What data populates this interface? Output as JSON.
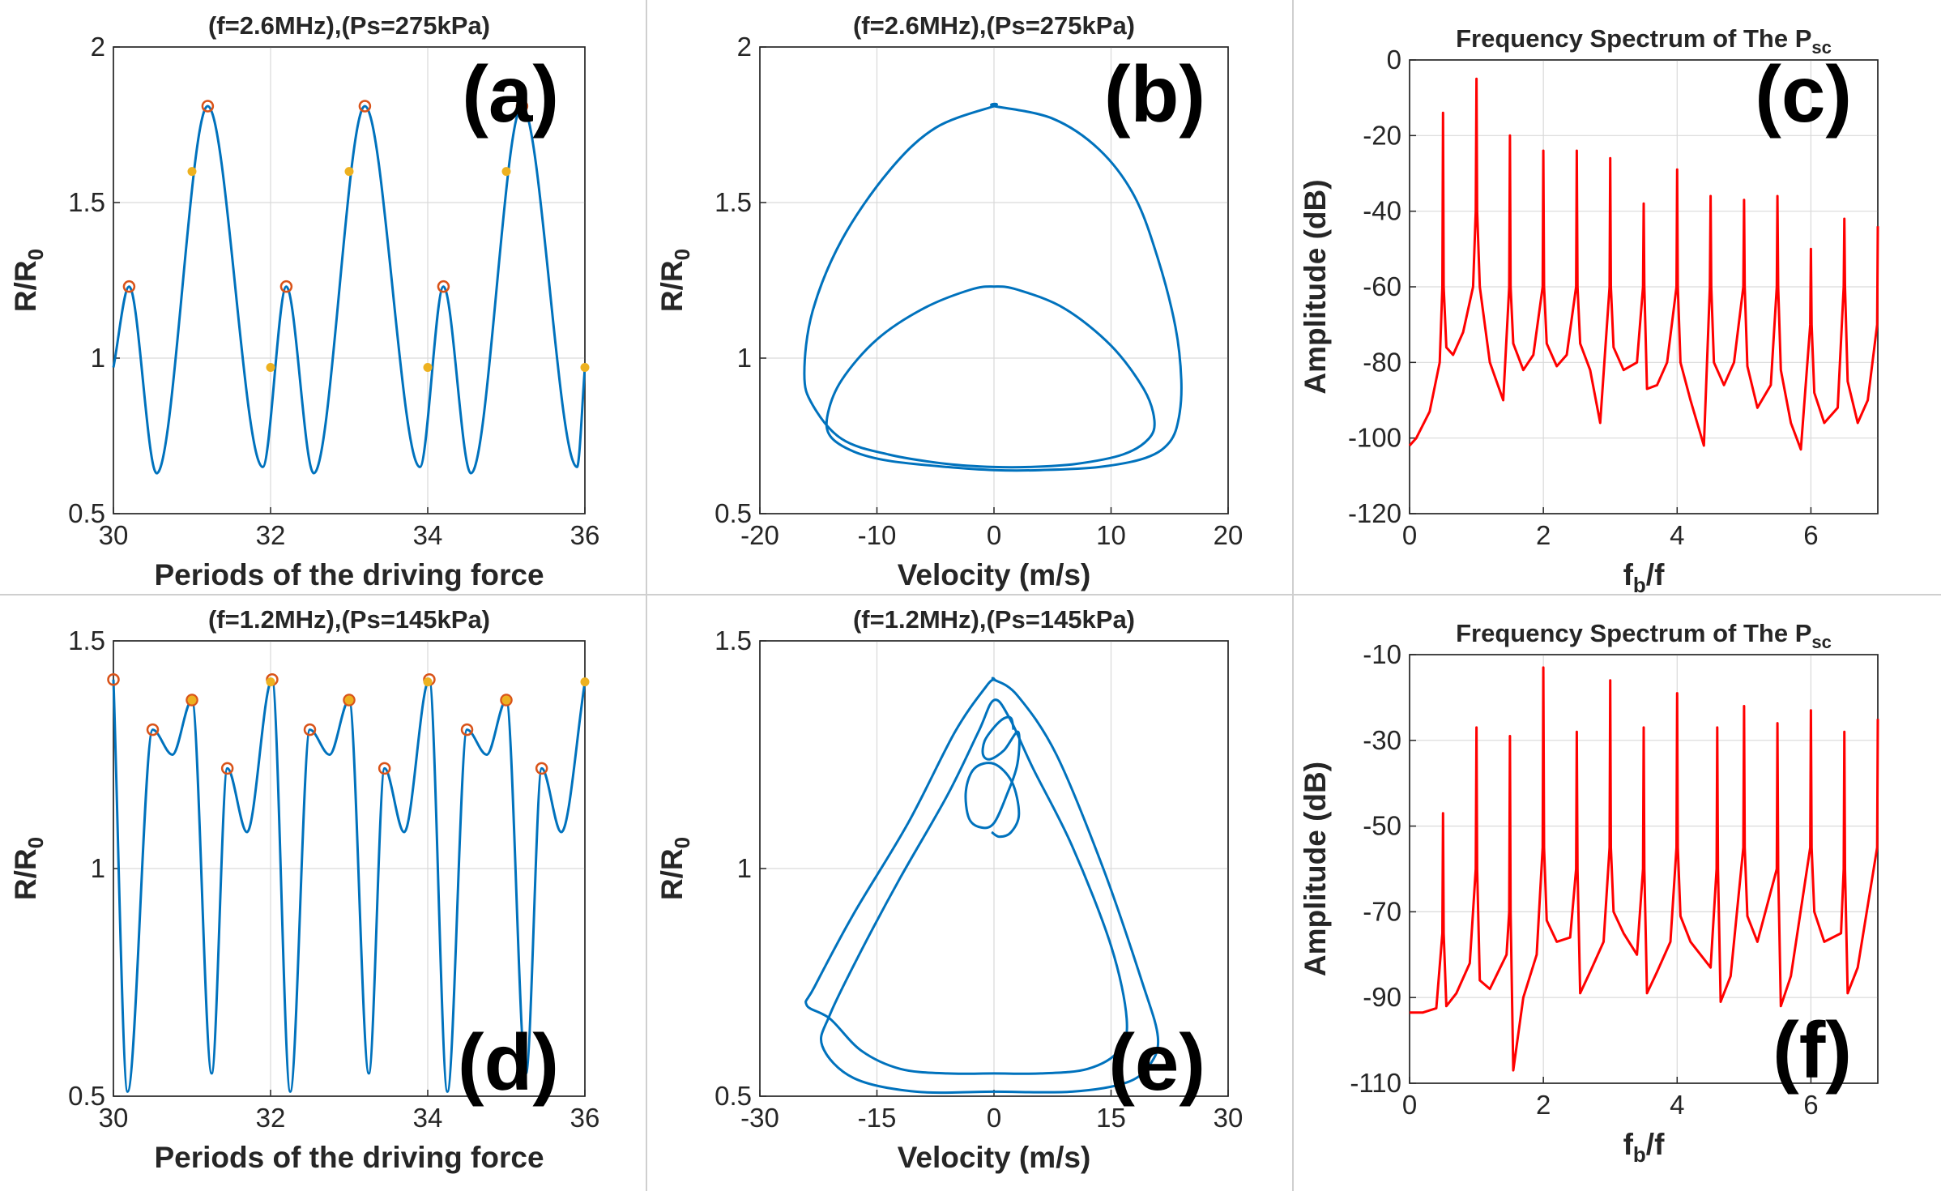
{
  "colors": {
    "blue": "#0072BD",
    "red": "#FF0000",
    "orange": "#EDB120",
    "marker_red": "#D95319",
    "axis": "#262626",
    "grid": "#d9d9d9"
  },
  "chart_data": [
    {
      "id": "a",
      "type": "line",
      "tag": "(a)",
      "title": "(f=2.6MHz),(Ps=275kPa)",
      "xlabel": "Periods of the driving force",
      "ylabel": "R/R",
      "ylabel_sub": "0",
      "xlim": [
        30,
        36
      ],
      "ylim": [
        0.5,
        2
      ],
      "xticks": [
        30,
        32,
        34,
        36
      ],
      "xtick_labels": [
        "30",
        "32",
        "34",
        "36"
      ],
      "yticks": [
        0.5,
        1,
        1.5,
        2
      ],
      "ytick_labels": [
        "0.5",
        "1",
        "1.5",
        "2"
      ],
      "series": [
        {
          "name": "R/R0",
          "color": "#0072BD",
          "x": [
            30,
            30.2,
            30.55,
            31.2,
            31.9,
            32.2,
            32.55,
            33.2,
            33.9,
            34.2,
            34.55,
            35.2,
            35.9,
            36
          ],
          "y": [
            0.97,
            1.23,
            0.63,
            1.81,
            0.65,
            1.23,
            0.63,
            1.81,
            0.65,
            1.23,
            0.63,
            1.81,
            0.65,
            0.97
          ]
        }
      ],
      "maxima": {
        "x": [
          30.2,
          31.2,
          32.2,
          33.2,
          34.2,
          35.2
        ],
        "y": [
          1.23,
          1.81,
          1.23,
          1.81,
          1.23,
          1.81
        ]
      },
      "poincare": {
        "x": [
          31,
          32,
          33,
          34,
          35,
          36
        ],
        "y": [
          1.6,
          0.97,
          1.6,
          0.97,
          1.6,
          0.97
        ]
      }
    },
    {
      "id": "b",
      "type": "line",
      "tag": "(b)",
      "title": "(f=2.6MHz),(Ps=275kPa)",
      "xlabel": "Velocity (m/s)",
      "ylabel": "R/R",
      "ylabel_sub": "0",
      "xlim": [
        -20,
        20
      ],
      "ylim": [
        0.5,
        2
      ],
      "xticks": [
        -20,
        -10,
        0,
        10,
        20
      ],
      "xtick_labels": [
        "-20",
        "-10",
        "0",
        "10",
        "20"
      ],
      "yticks": [
        0.5,
        1,
        1.5,
        2
      ],
      "ytick_labels": [
        "0.5",
        "1",
        "1.5",
        "2"
      ],
      "series": [
        {
          "name": "phase portrait",
          "color": "#0072BD",
          "closed": true,
          "x": [
            0,
            5,
            9,
            12,
            14,
            15.5,
            16,
            15.8,
            15,
            13,
            9,
            4,
            0,
            -4,
            -9,
            -12,
            -14,
            -14.2,
            -13,
            -10,
            -6,
            -2,
            0,
            2,
            6,
            10,
            12.8,
            13.7,
            13.2,
            11,
            7,
            3,
            0,
            -4,
            -9,
            -13,
            -15.5,
            -16.2,
            -15.5,
            -13,
            -9,
            -5,
            0
          ],
          "y": [
            1.81,
            1.77,
            1.67,
            1.52,
            1.32,
            1.1,
            0.93,
            0.81,
            0.73,
            0.68,
            0.65,
            0.64,
            0.64,
            0.65,
            0.67,
            0.7,
            0.75,
            0.82,
            0.93,
            1.06,
            1.16,
            1.22,
            1.23,
            1.22,
            1.16,
            1.04,
            0.9,
            0.8,
            0.74,
            0.69,
            0.66,
            0.65,
            0.65,
            0.66,
            0.69,
            0.74,
            0.85,
            0.95,
            1.15,
            1.38,
            1.6,
            1.74,
            1.81
          ]
        }
      ]
    },
    {
      "id": "c",
      "type": "line",
      "tag": "(c)",
      "title": "Frequency Spectrum of The P",
      "title_sub": "sc",
      "xlabel": "f",
      "xlabel_sub": "b",
      "xlabel_tail": "/f",
      "ylabel": "Amplitude (dB)",
      "xlim": [
        0,
        7
      ],
      "ylim": [
        -120,
        0
      ],
      "xticks": [
        0,
        2,
        4,
        6
      ],
      "xtick_labels": [
        "0",
        "2",
        "4",
        "6"
      ],
      "yticks": [
        -120,
        -100,
        -80,
        -60,
        -40,
        -20,
        0
      ],
      "ytick_labels": [
        "-120",
        "-100",
        "-80",
        "-60",
        "-40",
        "-20",
        "0"
      ],
      "series": [
        {
          "name": "spectrum",
          "color": "#FF0000",
          "x": [
            0,
            0.1,
            0.3,
            0.45,
            0.49,
            0.5,
            0.51,
            0.55,
            0.65,
            0.8,
            0.95,
            0.99,
            1.0,
            1.01,
            1.05,
            1.2,
            1.4,
            1.49,
            1.5,
            1.51,
            1.55,
            1.7,
            1.85,
            1.99,
            2.0,
            2.01,
            2.05,
            2.2,
            2.35,
            2.49,
            2.5,
            2.51,
            2.55,
            2.7,
            2.85,
            2.99,
            3.0,
            3.01,
            3.05,
            3.2,
            3.4,
            3.49,
            3.5,
            3.51,
            3.55,
            3.7,
            3.85,
            3.99,
            4.0,
            4.01,
            4.05,
            4.2,
            4.4,
            4.49,
            4.5,
            4.51,
            4.55,
            4.7,
            4.85,
            4.99,
            5.0,
            5.01,
            5.05,
            5.2,
            5.4,
            5.49,
            5.5,
            5.51,
            5.55,
            5.7,
            5.85,
            5.99,
            6.0,
            6.01,
            6.05,
            6.2,
            6.4,
            6.49,
            6.5,
            6.51,
            6.55,
            6.7,
            6.85,
            6.99,
            7.0
          ],
          "y": [
            -102,
            -100,
            -93,
            -80,
            -60,
            -14,
            -60,
            -76,
            -78,
            -72,
            -60,
            -40,
            -5,
            -40,
            -60,
            -80,
            -90,
            -60,
            -20,
            -60,
            -75,
            -82,
            -78,
            -60,
            -24,
            -60,
            -75,
            -81,
            -78,
            -60,
            -24,
            -60,
            -75,
            -82,
            -96,
            -60,
            -26,
            -60,
            -76,
            -82,
            -80,
            -60,
            -38,
            -60,
            -87,
            -86,
            -80,
            -60,
            -29,
            -60,
            -80,
            -90,
            -102,
            -60,
            -36,
            -60,
            -80,
            -86,
            -80,
            -60,
            -37,
            -60,
            -81,
            -92,
            -86,
            -60,
            -36,
            -60,
            -82,
            -96,
            -103,
            -70,
            -50,
            -70,
            -88,
            -96,
            -92,
            -60,
            -42,
            -60,
            -85,
            -96,
            -90,
            -70,
            -44
          ]
        }
      ]
    },
    {
      "id": "d",
      "type": "line",
      "tag": "(d)",
      "title": "(f=1.2MHz),(Ps=145kPa)",
      "xlabel": "Periods of the driving force",
      "ylabel": "R/R",
      "ylabel_sub": "0",
      "xlim": [
        30,
        36
      ],
      "ylim": [
        0.5,
        1.5
      ],
      "xticks": [
        30,
        32,
        34,
        36
      ],
      "xtick_labels": [
        "30",
        "32",
        "34",
        "36"
      ],
      "yticks": [
        0.5,
        1,
        1.5
      ],
      "ytick_labels": [
        "0.5",
        "1",
        "1.5"
      ],
      "series": [
        {
          "name": "R/R0",
          "color": "#0072BD",
          "x": [
            30,
            30.18,
            30.5,
            30.75,
            31,
            31.25,
            31.45,
            31.7,
            32.02,
            32.25,
            32.5,
            32.75,
            33,
            33.25,
            33.45,
            33.7,
            34.02,
            34.25,
            34.5,
            34.75,
            35,
            35.25,
            35.45,
            35.7,
            36
          ],
          "y": [
            1.415,
            0.51,
            1.305,
            1.25,
            1.37,
            0.55,
            1.22,
            1.08,
            1.415,
            0.51,
            1.305,
            1.25,
            1.37,
            0.55,
            1.22,
            1.08,
            1.415,
            0.51,
            1.305,
            1.25,
            1.37,
            0.55,
            1.22,
            1.08,
            1.41
          ]
        }
      ],
      "maxima": {
        "x": [
          30,
          30.5,
          31,
          31.45,
          32.02,
          32.5,
          33,
          33.45,
          34.02,
          34.5,
          35,
          35.45
        ],
        "y": [
          1.415,
          1.305,
          1.37,
          1.22,
          1.415,
          1.305,
          1.37,
          1.22,
          1.415,
          1.305,
          1.37,
          1.22
        ]
      },
      "poincare": {
        "x": [
          31,
          32,
          33,
          34,
          35,
          36
        ],
        "y": [
          1.37,
          1.41,
          1.37,
          1.41,
          1.37,
          1.41
        ]
      }
    },
    {
      "id": "e",
      "type": "line",
      "tag": "(e)",
      "title": "(f=1.2MHz),(Ps=145kPa)",
      "xlabel": "Velocity (m/s)",
      "ylabel": "R/R",
      "ylabel_sub": "0",
      "xlim": [
        -30,
        30
      ],
      "ylim": [
        0.5,
        1.5
      ],
      "xticks": [
        -30,
        -15,
        0,
        15,
        30
      ],
      "xtick_labels": [
        "-30",
        "-15",
        "0",
        "15",
        "30"
      ],
      "yticks": [
        0.5,
        1,
        1.5
      ],
      "ytick_labels": [
        "0.5",
        "1",
        "1.5"
      ],
      "series": [
        {
          "name": "outer loops",
          "color": "#0072BD",
          "closed": true,
          "x": [
            0,
            3,
            8,
            14,
            19,
            21,
            20,
            17,
            10,
            0,
            -10,
            -18,
            -22,
            -21,
            -17,
            -12,
            -6,
            -2,
            0,
            2,
            5,
            10,
            15,
            17,
            16,
            12,
            6,
            0,
            -6,
            -12,
            -17,
            -21,
            -24,
            -23,
            -18,
            -11,
            -5,
            -1,
            0
          ],
          "y": [
            1.415,
            1.38,
            1.25,
            1.0,
            0.75,
            0.63,
            0.57,
            0.53,
            0.51,
            0.51,
            0.51,
            0.54,
            0.61,
            0.68,
            0.82,
            0.98,
            1.16,
            1.3,
            1.37,
            1.33,
            1.22,
            1.05,
            0.83,
            0.67,
            0.6,
            0.56,
            0.55,
            0.55,
            0.55,
            0.56,
            0.6,
            0.67,
            0.7,
            0.74,
            0.9,
            1.1,
            1.3,
            1.4,
            1.415
          ]
        },
        {
          "name": "inner loop",
          "color": "#0072BD",
          "closed": false,
          "x": [
            2.5,
            2.2,
            1.3,
            0,
            -1.2,
            -1.4,
            -0.5,
            1.3,
            3.1,
            3.0,
            1.6,
            0,
            -1.6,
            -3.2,
            -3.6,
            -2.5,
            0,
            2.3,
            3.2,
            2.2,
            0.7,
            -0.3
          ],
          "y": [
            1.305,
            1.33,
            1.33,
            1.31,
            1.28,
            1.25,
            1.24,
            1.26,
            1.3,
            1.23,
            1.16,
            1.1,
            1.09,
            1.11,
            1.17,
            1.22,
            1.23,
            1.19,
            1.12,
            1.08,
            1.07,
            1.08
          ]
        }
      ]
    },
    {
      "id": "f",
      "type": "line",
      "tag": "(f)",
      "title": "Frequency Spectrum of The P",
      "title_sub": "sc",
      "xlabel": "f",
      "xlabel_sub": "b",
      "xlabel_tail": "/f",
      "ylabel": "Amplitude (dB)",
      "xlim": [
        0,
        7
      ],
      "ylim": [
        -110,
        -10
      ],
      "xticks": [
        0,
        2,
        4,
        6
      ],
      "xtick_labels": [
        "0",
        "2",
        "4",
        "6"
      ],
      "yticks": [
        -110,
        -90,
        -70,
        -50,
        -30,
        -10
      ],
      "ytick_labels": [
        "-110",
        "-90",
        "-70",
        "-50",
        "-30",
        "-10"
      ],
      "series": [
        {
          "name": "spectrum",
          "color": "#FF0000",
          "x": [
            0,
            0.2,
            0.4,
            0.49,
            0.5,
            0.51,
            0.55,
            0.7,
            0.9,
            0.99,
            1.0,
            1.01,
            1.05,
            1.2,
            1.45,
            1.49,
            1.5,
            1.51,
            1.55,
            1.7,
            1.9,
            1.99,
            2.0,
            2.01,
            2.05,
            2.2,
            2.4,
            2.49,
            2.5,
            2.51,
            2.55,
            2.7,
            2.9,
            2.99,
            3.0,
            3.01,
            3.05,
            3.2,
            3.4,
            3.49,
            3.5,
            3.51,
            3.55,
            3.7,
            3.9,
            3.99,
            4.0,
            4.01,
            4.05,
            4.2,
            4.5,
            4.59,
            4.6,
            4.61,
            4.65,
            4.8,
            4.99,
            5.0,
            5.01,
            5.05,
            5.2,
            5.49,
            5.5,
            5.51,
            5.55,
            5.7,
            5.99,
            6.0,
            6.01,
            6.05,
            6.2,
            6.45,
            6.49,
            6.5,
            6.51,
            6.55,
            6.7,
            6.99,
            7.0
          ],
          "y": [
            -93.5,
            -93.5,
            -92.5,
            -75,
            -47,
            -75,
            -92,
            -89,
            -82,
            -60,
            -27,
            -60,
            -86,
            -88,
            -80,
            -70,
            -29,
            -70,
            -107,
            -90,
            -80,
            -55,
            -13,
            -55,
            -72,
            -77,
            -76,
            -60,
            -28,
            -60,
            -89,
            -84,
            -77,
            -55,
            -16,
            -55,
            -70,
            -75,
            -80,
            -60,
            -27,
            -60,
            -89,
            -84,
            -77,
            -55,
            -19,
            -55,
            -71,
            -77,
            -83,
            -60,
            -27,
            -60,
            -91,
            -85,
            -55,
            -22,
            -55,
            -71,
            -77,
            -60,
            -26,
            -60,
            -92,
            -85,
            -55,
            -23,
            -55,
            -70,
            -77,
            -75,
            -60,
            -28,
            -60,
            -89,
            -83,
            -55,
            -25
          ]
        }
      ]
    }
  ]
}
